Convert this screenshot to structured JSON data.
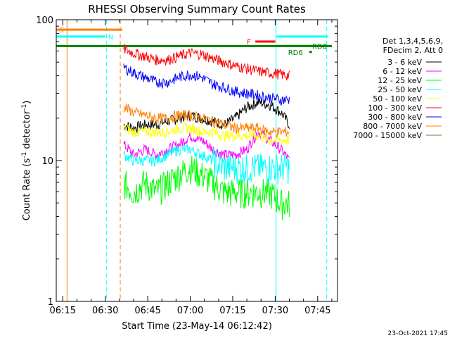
{
  "chart_data": {
    "type": "line",
    "title": "RHESSI Observing Summary Count Rates",
    "xlabel": "Start Time (23-May-14 06:12:42)",
    "ylabel_main": "Count Rate (s",
    "ylabel_sup": "-1",
    "ylabel_tail": " detector",
    "ylabel_end": ")",
    "yscale": "log",
    "ylim": [
      1,
      100
    ],
    "xlim": [
      "06:12:42",
      "07:52:00"
    ],
    "y_tick_labels": [
      "1",
      "10",
      "100"
    ],
    "x_tick_labels": [
      "06:15",
      "06:30",
      "06:45",
      "07:00",
      "07:15",
      "07:30",
      "07:45"
    ],
    "x_tick_minutes": [
      15,
      30,
      45,
      60,
      75,
      90,
      105
    ],
    "legend_header": [
      "Det 1,3,4,5,6,9,",
      "FDecim 2, Att 0"
    ],
    "series": [
      {
        "name": "3 - 6 keV",
        "color": "#000000",
        "values": [
          18,
          17,
          18,
          18,
          19,
          20,
          21,
          20,
          19,
          18,
          20,
          24,
          26,
          25,
          22,
          18
        ]
      },
      {
        "name": "6 - 12 keV",
        "color": "#ff00ff",
        "values": [
          13,
          11,
          12,
          11,
          12,
          13,
          15,
          14,
          12,
          11,
          11,
          12,
          16,
          14,
          12,
          10
        ]
      },
      {
        "name": "12 - 25 keV",
        "color": "#00ff00",
        "values": [
          7,
          6,
          7,
          6,
          7,
          8,
          9,
          8,
          7,
          6,
          6,
          6,
          6,
          6,
          5,
          5
        ]
      },
      {
        "name": "25 - 50 keV",
        "color": "#00ffff",
        "values": [
          11,
          10,
          10,
          10,
          11,
          12,
          12,
          11,
          10,
          9,
          9,
          9,
          9,
          9,
          9,
          9
        ]
      },
      {
        "name": "50 - 100 keV",
        "color": "#ffff00",
        "values": [
          17,
          16,
          16,
          16,
          16,
          17,
          17,
          16,
          16,
          15,
          15,
          15,
          15,
          14,
          14,
          14
        ]
      },
      {
        "name": "100 - 300 keV",
        "color": "#ff0000",
        "values": [
          62,
          58,
          55,
          52,
          52,
          55,
          58,
          57,
          53,
          50,
          47,
          45,
          43,
          42,
          41,
          40
        ]
      },
      {
        "name": "300 - 800 keV",
        "color": "#0000ff",
        "values": [
          46,
          42,
          39,
          36,
          36,
          39,
          41,
          39,
          35,
          33,
          31,
          30,
          29,
          28,
          27,
          27
        ]
      },
      {
        "name": "800 - 7000 keV",
        "color": "#ff8000",
        "values": [
          24,
          22,
          21,
          20,
          20,
          21,
          21,
          20,
          19,
          18,
          17,
          17,
          17,
          16,
          16,
          16
        ]
      },
      {
        "name": "7000 - 15000 keV",
        "color": "#996633",
        "values": [
          null,
          null,
          null,
          null,
          null,
          null,
          null,
          null,
          null,
          null,
          null,
          null,
          null,
          null,
          null,
          null
        ]
      }
    ],
    "series_x_minutes": [
      36.5,
      40,
      44,
      48,
      52,
      56,
      60,
      64,
      68,
      72,
      76,
      80,
      84,
      88,
      92,
      95
    ],
    "flag_bars": [
      {
        "label": "S",
        "color": "#ff8000",
        "x0": 12.7,
        "x1": 36,
        "y": 85
      },
      {
        "label": "N",
        "color": "#00ffff",
        "x0": 12.7,
        "x1": 30,
        "y": 76
      },
      {
        "label": "F",
        "color": "#ff0000",
        "x0": 83,
        "x1": 90,
        "y": 70
      },
      {
        "label": "RD6",
        "color": "#008000",
        "x0": 102,
        "x1": 103,
        "y": 59
      },
      {
        "label": "RD8",
        "color": "#008000",
        "x0": 90.5,
        "x1": 110,
        "y": 65
      }
    ],
    "observing_bar": {
      "color": "#008000",
      "x0": 12.7,
      "x1": 108.5,
      "y": 65
    },
    "cyan_line_right": {
      "x0": 90.5,
      "x1": 108.5,
      "y": 76
    },
    "vlines": [
      {
        "x": 16.5,
        "color": "#ff8000",
        "style": "solid"
      },
      {
        "x": 30.5,
        "color": "#00ffff",
        "style": "dashed"
      },
      {
        "x": 35.3,
        "color": "#ff8000",
        "style": "dashed"
      },
      {
        "x": 90.3,
        "color": "#00ffff",
        "style": "solid"
      },
      {
        "x": 108.2,
        "color": "#00ffff",
        "style": "dashed"
      }
    ],
    "grid": false,
    "legend_position": "right"
  },
  "footer_date": "23-Oct-2021 17:45"
}
